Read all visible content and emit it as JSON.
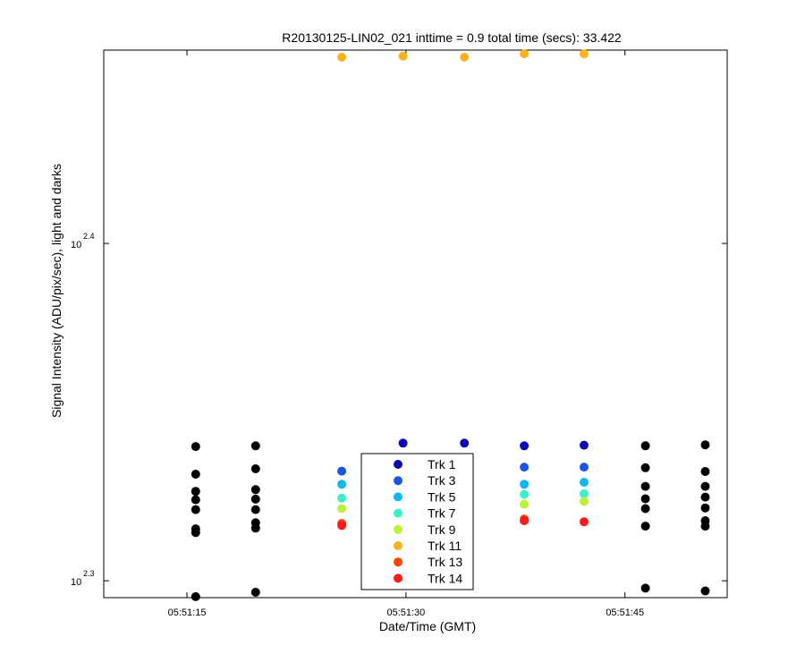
{
  "chart_data": {
    "type": "scatter",
    "title": "R20130125-LIN02_021 inttime = 0.9 total time (secs): 33.422",
    "xlabel": "Date/Time (GMT)",
    "ylabel": "Signal Intensity (ADU/pix/sec), light and darks",
    "x_unit": "seconds past 05:51:00 GMT",
    "xlim": [
      9.3,
      52.0
    ],
    "ylim": [
      2.295,
      2.4573
    ],
    "y_scale": "log10",
    "y_ticks": [
      {
        "base": "10",
        "exp": "2.3",
        "value": 2.3
      },
      {
        "base": "10",
        "exp": "2.4",
        "value": 2.4
      }
    ],
    "x_ticks": [
      {
        "label": "05:51:15",
        "value": 15
      },
      {
        "label": "05:51:30",
        "value": 30
      },
      {
        "label": "05:51:45",
        "value": 45
      }
    ],
    "grid": false,
    "legend_position": "bottom-center",
    "series": [
      {
        "name": "Trk 1",
        "color": "#0a0ab4",
        "points": [
          [
            29.8,
            2.3408
          ],
          [
            34.0,
            2.3408
          ],
          [
            38.1,
            2.34
          ],
          [
            42.2,
            2.3402
          ]
        ]
      },
      {
        "name": "Trk 3",
        "color": "#1a55e8",
        "points": [
          [
            25.6,
            2.3325
          ],
          [
            38.1,
            2.3337
          ],
          [
            42.2,
            2.3337
          ]
        ]
      },
      {
        "name": "Trk 5",
        "color": "#11b8f0",
        "points": [
          [
            25.6,
            2.3286
          ],
          [
            38.1,
            2.3286
          ],
          [
            42.2,
            2.3292
          ]
        ]
      },
      {
        "name": "Trk 7",
        "color": "#3ef0c8",
        "points": [
          [
            25.6,
            2.3245
          ],
          [
            38.1,
            2.3256
          ],
          [
            42.2,
            2.3258
          ]
        ]
      },
      {
        "name": "Trk 9",
        "color": "#bdf03a",
        "points": [
          [
            25.6,
            2.3214
          ],
          [
            38.1,
            2.3227
          ],
          [
            42.2,
            2.3235
          ]
        ]
      },
      {
        "name": "Trk 11",
        "color": "#fbb21d",
        "points": [
          [
            25.6,
            2.4552
          ],
          [
            29.8,
            2.4555
          ],
          [
            34.0,
            2.4552
          ],
          [
            38.1,
            2.4562
          ],
          [
            42.2,
            2.4562
          ]
        ]
      },
      {
        "name": "Trk 13",
        "color": "#ff4500",
        "points": [
          [
            25.6,
            2.317
          ],
          [
            38.1,
            2.3183
          ]
        ]
      },
      {
        "name": "Trk 14",
        "color": "#ff1a1a",
        "points": [
          [
            25.6,
            2.3164
          ],
          [
            38.1,
            2.3178
          ],
          [
            42.2,
            2.3175
          ]
        ]
      },
      {
        "color": "#000000",
        "points": [
          [
            15.6,
            2.3398
          ],
          [
            15.6,
            2.3316
          ],
          [
            15.6,
            2.3265
          ],
          [
            15.6,
            2.324
          ],
          [
            15.6,
            2.3211
          ],
          [
            15.6,
            2.3154
          ],
          [
            15.6,
            2.3143
          ],
          [
            15.6,
            2.2953
          ],
          [
            19.7,
            2.34
          ],
          [
            19.7,
            2.3332
          ],
          [
            19.7,
            2.327
          ],
          [
            19.7,
            2.3242
          ],
          [
            19.7,
            2.3211
          ],
          [
            19.7,
            2.3172
          ],
          [
            19.7,
            2.3156
          ],
          [
            19.7,
            2.2966
          ],
          [
            46.4,
            2.34
          ],
          [
            46.4,
            2.3335
          ],
          [
            46.4,
            2.328
          ],
          [
            46.4,
            2.3243
          ],
          [
            46.4,
            2.3214
          ],
          [
            46.4,
            2.3162
          ],
          [
            46.4,
            2.2978
          ],
          [
            50.5,
            2.3403
          ],
          [
            50.5,
            2.3324
          ],
          [
            50.5,
            2.328
          ],
          [
            50.5,
            2.3248
          ],
          [
            50.5,
            2.3216
          ],
          [
            50.5,
            2.3178
          ],
          [
            50.5,
            2.3162
          ],
          [
            50.5,
            2.297
          ]
        ]
      }
    ]
  }
}
